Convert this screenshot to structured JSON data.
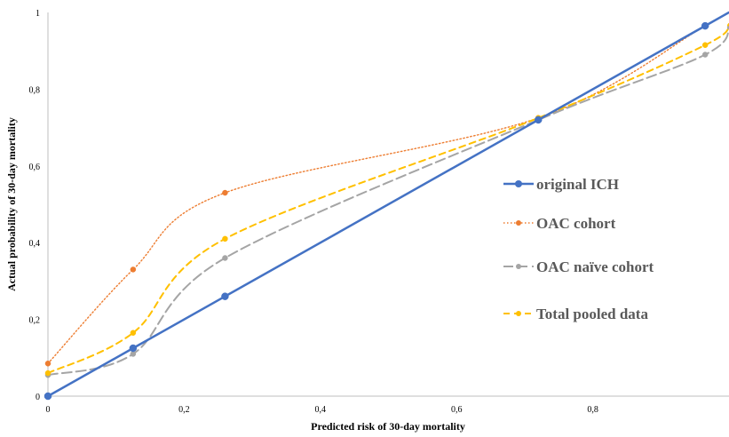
{
  "chart_data": {
    "type": "line",
    "xlabel": "Predicted risk of 30-day mortality",
    "ylabel": "Actual probability of 30-day mortality",
    "xlim": [
      0,
      1
    ],
    "ylim": [
      0,
      1
    ],
    "xticks": [
      {
        "value": 0,
        "label": "0"
      },
      {
        "value": 0.2,
        "label": "0,2"
      },
      {
        "value": 0.4,
        "label": "0,4"
      },
      {
        "value": 0.6,
        "label": "0,6"
      },
      {
        "value": 0.8,
        "label": "0,8"
      }
    ],
    "yticks": [
      {
        "value": 0,
        "label": "0"
      },
      {
        "value": 0.2,
        "label": "0,2"
      },
      {
        "value": 0.4,
        "label": "0,4"
      },
      {
        "value": 0.6,
        "label": "0,6"
      },
      {
        "value": 0.8,
        "label": "0,8"
      },
      {
        "value": 1,
        "label": "1"
      }
    ],
    "grid": false,
    "legend_position": "right",
    "series": [
      {
        "name": "original ICH",
        "color": "#4472C4",
        "line_style": "solid",
        "smooth": false,
        "x": [
          0,
          0.125,
          0.26,
          0.72,
          0.965,
          1.0
        ],
        "y": [
          0,
          0.125,
          0.26,
          0.72,
          0.965,
          1.0
        ],
        "markers": [
          true,
          true,
          true,
          true,
          true,
          false
        ]
      },
      {
        "name": "OAC cohort",
        "color": "#ED7D31",
        "line_style": "dotted",
        "smooth": true,
        "x": [
          0,
          0.125,
          0.26,
          0.72,
          0.965,
          1.0
        ],
        "y": [
          0.085,
          0.33,
          0.53,
          0.725,
          0.965,
          1.0
        ],
        "markers": [
          true,
          true,
          true,
          true,
          true,
          false
        ]
      },
      {
        "name": "OAC naïve cohort",
        "color": "#A5A5A5",
        "line_style": "longdash",
        "smooth": true,
        "x": [
          0,
          0.125,
          0.26,
          0.72,
          0.965,
          1.0
        ],
        "y": [
          0.055,
          0.11,
          0.36,
          0.72,
          0.89,
          0.97
        ],
        "markers": [
          true,
          true,
          true,
          true,
          true,
          false
        ]
      },
      {
        "name": "Total pooled data",
        "color": "#FFC000",
        "line_style": "dashed",
        "smooth": true,
        "x": [
          0,
          0.125,
          0.26,
          0.72,
          0.965,
          1.0
        ],
        "y": [
          0.06,
          0.165,
          0.41,
          0.725,
          0.915,
          0.97
        ],
        "markers": [
          true,
          true,
          true,
          true,
          true,
          false
        ]
      }
    ]
  }
}
